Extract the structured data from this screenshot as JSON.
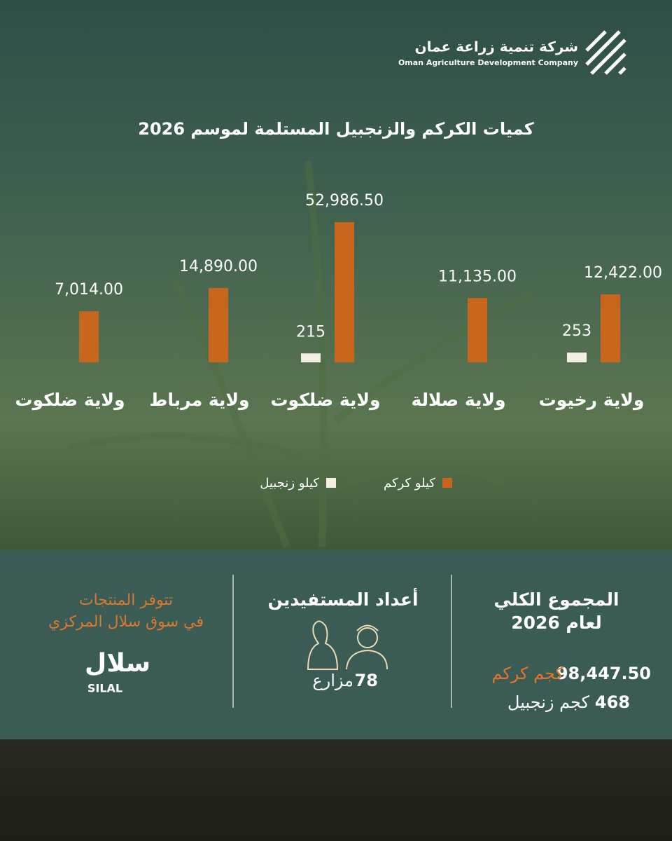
{
  "header": {
    "logo_arabic": "شركة تنمية زراعة عمان",
    "logo_english": "Oman Agriculture Development Company"
  },
  "chart_data": {
    "type": "bar",
    "title": "كميات الكركم والزنجبيل المستلمة لموسم 2026",
    "categories": [
      "ولاية رخيوت",
      "ولاية صلالة",
      "ولاية ضلكوت",
      "ولاية مرباط",
      "ولاية ضلكوت"
    ],
    "series": [
      {
        "name": "كيلو كركم",
        "color": "#c8661e",
        "values": [
          12422,
          11135,
          52986.5,
          14890,
          7014
        ],
        "value_labels": [
          "12,422.00",
          "11,135.00",
          "52,986.50",
          "14,890.00",
          "7,014.00"
        ]
      },
      {
        "name": "كيلو زنجبيل",
        "color": "#f4efe4",
        "values": [
          253,
          null,
          215,
          null,
          null
        ]
      }
    ]
  },
  "summary": {
    "total": {
      "title_line1": "المجموع الكلي",
      "title_line2": "لعام 2026",
      "turmeric_amount": "98,447.50",
      "turmeric_unit": "كجم كركم",
      "ginger_amount": "468",
      "ginger_unit": "كجم زنجبيل"
    },
    "beneficiaries": {
      "title": "أعداد المستفيدين",
      "count": "78",
      "unit": "مزارع"
    },
    "availability": {
      "line1": "تتوفر المنتجات",
      "line2": "في سوق سلال المركزي",
      "brand_arabic": "سلال",
      "brand_latin": "SILAL"
    }
  }
}
